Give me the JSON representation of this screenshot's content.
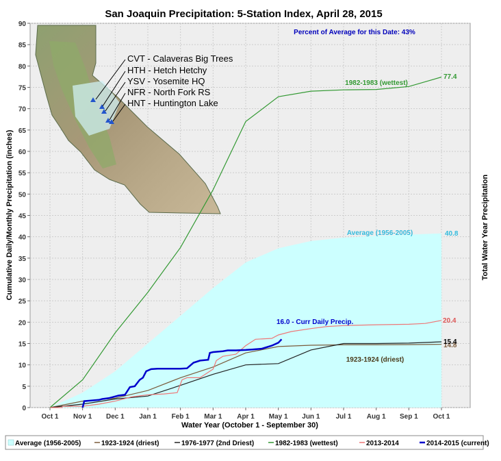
{
  "chart_data": {
    "type": "line",
    "title": "San Joaquin Precipitation: 5-Station Index, April 28, 2015",
    "xlabel": "Water Year (October 1 - September 30)",
    "ylabel": "Cumulative Daily/Monthly Precipitation (inches)",
    "y2label": "Total Water Year Precipitation",
    "ylim": [
      0,
      90
    ],
    "yticks": [
      0,
      5,
      10,
      15,
      20,
      25,
      30,
      35,
      40,
      45,
      50,
      55,
      60,
      65,
      70,
      75,
      80,
      85,
      90
    ],
    "xticks": [
      "Oct 1",
      "Nov 1",
      "Dec 1",
      "Jan 1",
      "Feb 1",
      "Mar 1",
      "Apr 1",
      "May 1",
      "Jun 1",
      "Jul 1",
      "Aug 1",
      "Sep 1",
      "Oct 1"
    ],
    "grid": true,
    "legend_position": "bottom",
    "percent_of_average_note": "Percent of Average for this Date: 43%",
    "station_labels": [
      "CVT - Calaveras Big Trees",
      "HTH - Hetch Hetchy",
      "YSV - Yosemite HQ",
      "NFR - North Fork RS",
      "HNT - Huntington Lake"
    ],
    "series": [
      {
        "name": "Average (1956-2005)",
        "color": "#ccffff",
        "kind": "area",
        "points": [
          [
            0,
            0
          ],
          [
            1,
            3.5
          ],
          [
            2,
            8.5
          ],
          [
            3,
            15
          ],
          [
            4,
            21.5
          ],
          [
            5,
            28
          ],
          [
            6,
            34
          ],
          [
            7,
            37.3
          ],
          [
            8,
            39
          ],
          [
            9,
            39.8
          ],
          [
            10,
            40.2
          ],
          [
            11,
            40.5
          ],
          [
            12,
            40.8
          ]
        ],
        "end_label": "40.8",
        "end_label_color": "#33bbdd",
        "label": "Average (1956-2005)",
        "label_color": "#33bbdd"
      },
      {
        "name": "1923-1924 (driest)",
        "color": "#7a5a3a",
        "kind": "line",
        "points": [
          [
            0,
            0
          ],
          [
            1,
            1.5
          ],
          [
            2,
            2.2
          ],
          [
            3,
            4
          ],
          [
            4,
            7
          ],
          [
            5,
            9.5
          ],
          [
            6,
            12.8
          ],
          [
            7,
            14.3
          ],
          [
            8,
            14.6
          ],
          [
            9,
            14.7
          ],
          [
            10,
            14.7
          ],
          [
            11,
            14.75
          ],
          [
            12,
            14.8
          ]
        ],
        "end_label": "14.8",
        "end_label_color": "#7a5a3a",
        "label": "1923-1924 (driest)",
        "label_color": "#4a3a1a"
      },
      {
        "name": "1976-1977 (2nd Driest)",
        "color": "#222222",
        "kind": "line",
        "points": [
          [
            0,
            0
          ],
          [
            1,
            0.8
          ],
          [
            2,
            2
          ],
          [
            3,
            2.7
          ],
          [
            4,
            5.2
          ],
          [
            5,
            7.8
          ],
          [
            6,
            10
          ],
          [
            7,
            10.3
          ],
          [
            8,
            13.5
          ],
          [
            9,
            15
          ],
          [
            10,
            15
          ],
          [
            11,
            15.1
          ],
          [
            12,
            15.4
          ]
        ],
        "end_label": "15.4",
        "end_label_color": "#000000"
      },
      {
        "name": "1982-1983 (wettest)",
        "color": "#339933",
        "kind": "line",
        "points": [
          [
            0,
            0
          ],
          [
            1,
            6.5
          ],
          [
            2,
            17.5
          ],
          [
            3,
            27
          ],
          [
            4,
            37.5
          ],
          [
            5,
            51
          ],
          [
            6,
            67
          ],
          [
            7,
            72.8
          ],
          [
            8,
            74.1
          ],
          [
            9,
            74.4
          ],
          [
            10,
            74.5
          ],
          [
            11,
            75.2
          ],
          [
            12,
            77.4
          ]
        ],
        "end_label": "77.4",
        "end_label_color": "#339933",
        "label": "1982-1983 (wettest)",
        "label_color": "#339933"
      },
      {
        "name": "2013-2014",
        "color": "#ee7777",
        "kind": "line",
        "points": [
          [
            0,
            0
          ],
          [
            0.35,
            0
          ],
          [
            0.4,
            0.3
          ],
          [
            1.0,
            0.3
          ],
          [
            1.5,
            0.8
          ],
          [
            2.0,
            1.5
          ],
          [
            2.5,
            2.5
          ],
          [
            3.0,
            3.0
          ],
          [
            3.5,
            3.2
          ],
          [
            3.9,
            3.5
          ],
          [
            4.05,
            6.5
          ],
          [
            4.2,
            7.0
          ],
          [
            4.6,
            7.0
          ],
          [
            4.8,
            8.0
          ],
          [
            5.0,
            9.0
          ],
          [
            5.1,
            11.0
          ],
          [
            5.3,
            12.0
          ],
          [
            5.7,
            12.5
          ],
          [
            6.0,
            14.5
          ],
          [
            6.3,
            16.0
          ],
          [
            6.8,
            16.2
          ],
          [
            7.0,
            17.0
          ],
          [
            7.4,
            17.8
          ],
          [
            8.0,
            18.5
          ],
          [
            8.5,
            19.0
          ],
          [
            9.0,
            19.2
          ],
          [
            10.0,
            19.4
          ],
          [
            11.0,
            19.5
          ],
          [
            11.5,
            19.7
          ],
          [
            12.0,
            20.4
          ]
        ],
        "end_label": "20.4",
        "end_label_color": "#dd5555"
      },
      {
        "name": "2014-2015 (current)",
        "color": "#0000cc",
        "kind": "line",
        "points": [
          [
            1.0,
            0
          ],
          [
            1.05,
            1.5
          ],
          [
            1.5,
            1.8
          ],
          [
            1.6,
            2.0
          ],
          [
            1.8,
            2.2
          ],
          [
            2.1,
            2.8
          ],
          [
            2.3,
            3.0
          ],
          [
            2.45,
            4.8
          ],
          [
            2.6,
            5.0
          ],
          [
            2.75,
            6.5
          ],
          [
            2.85,
            7.0
          ],
          [
            2.95,
            8.5
          ],
          [
            3.1,
            9.0
          ],
          [
            3.3,
            9.1
          ],
          [
            3.5,
            9.1
          ],
          [
            4.0,
            9.1
          ],
          [
            4.2,
            9.2
          ],
          [
            4.4,
            10.5
          ],
          [
            4.6,
            11.0
          ],
          [
            4.85,
            11.2
          ],
          [
            4.9,
            12.8
          ],
          [
            5.0,
            13.0
          ],
          [
            5.3,
            13.2
          ],
          [
            5.45,
            13.4
          ],
          [
            5.7,
            13.4
          ],
          [
            6.0,
            13.5
          ],
          [
            6.2,
            13.6
          ],
          [
            6.5,
            13.8
          ],
          [
            6.8,
            14.5
          ],
          [
            7.0,
            15.2
          ],
          [
            7.1,
            16.0
          ]
        ],
        "label": "16.0 -  Curr Daily Precip.",
        "label_color": "#0000cc"
      }
    ]
  }
}
